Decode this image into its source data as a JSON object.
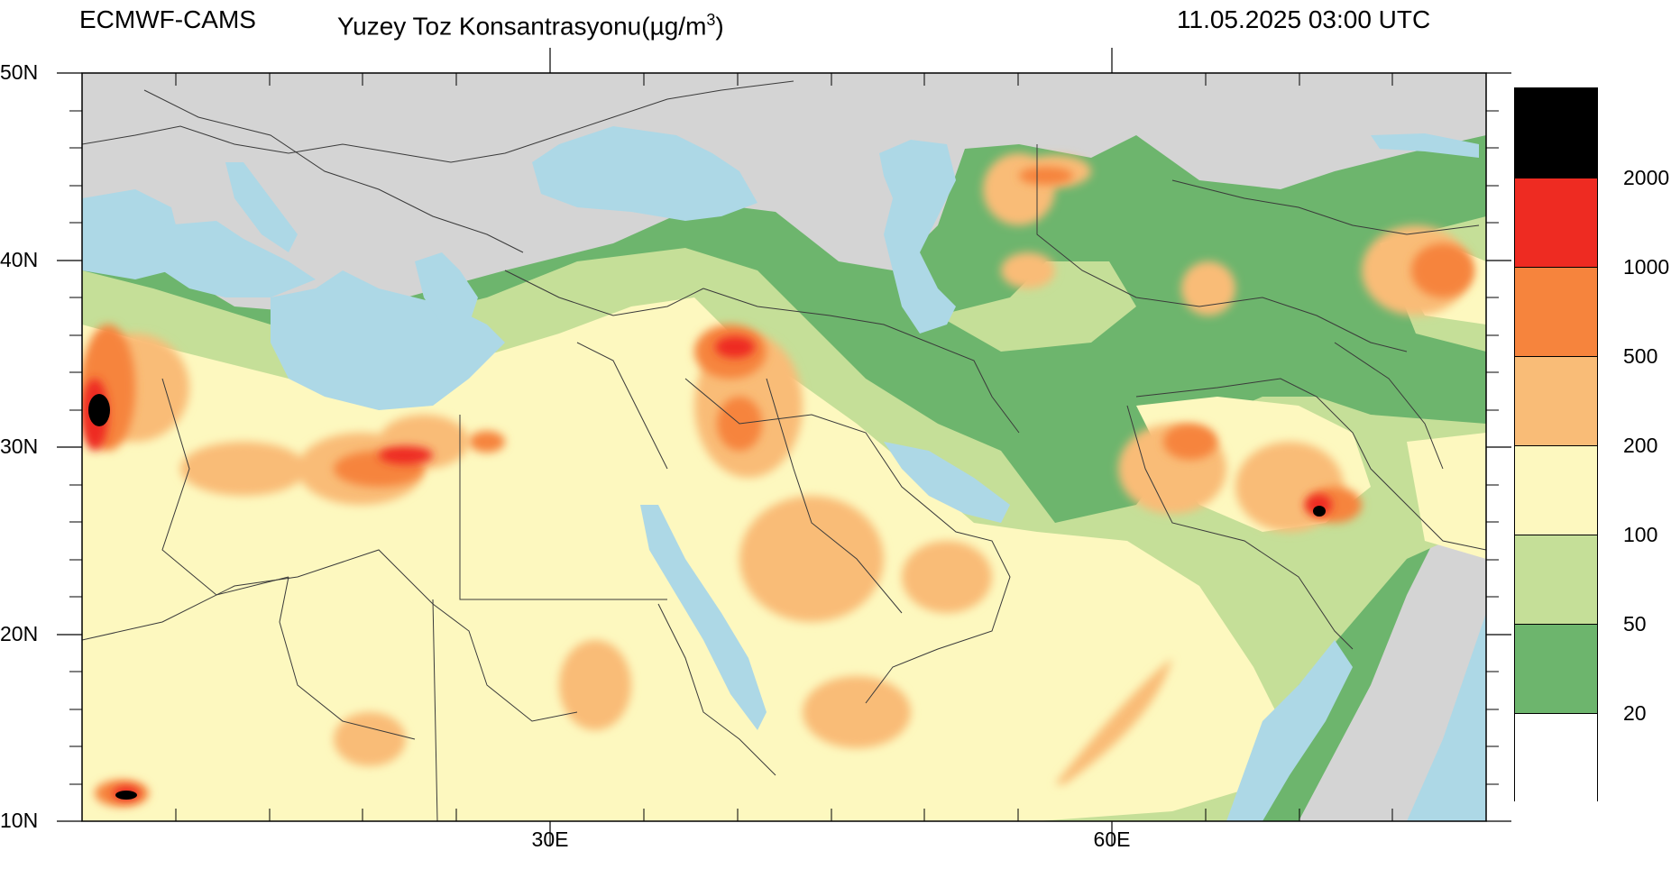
{
  "header": {
    "source": "ECMWF-CAMS",
    "title_main": "Yuzey Toz Konsantrasyonu(µg/m",
    "title_sup": "3",
    "title_close": ")",
    "timestamp": "11.05.2025 03:00 UTC"
  },
  "map": {
    "projection_extent": {
      "lon_min": 0,
      "lon_max": 75,
      "lat_min": 10,
      "lat_max": 50
    },
    "lat_labels": [
      "50N",
      "40N",
      "30N",
      "20N",
      "10N"
    ],
    "lon_labels": [
      "30E",
      "60E"
    ],
    "colors": {
      "land_background": "#d4d4d4",
      "water": "#add8e6",
      "border": "#3a3a3a"
    }
  },
  "legend": {
    "labels": [
      "2000",
      "1000",
      "500",
      "200",
      "100",
      "50",
      "20"
    ],
    "colors": [
      "#000000",
      "#ee2b22",
      "#f6843d",
      "#f9bc77",
      "#fdf8bf",
      "#c5df98",
      "#6db56d",
      "#ffffff"
    ]
  }
}
